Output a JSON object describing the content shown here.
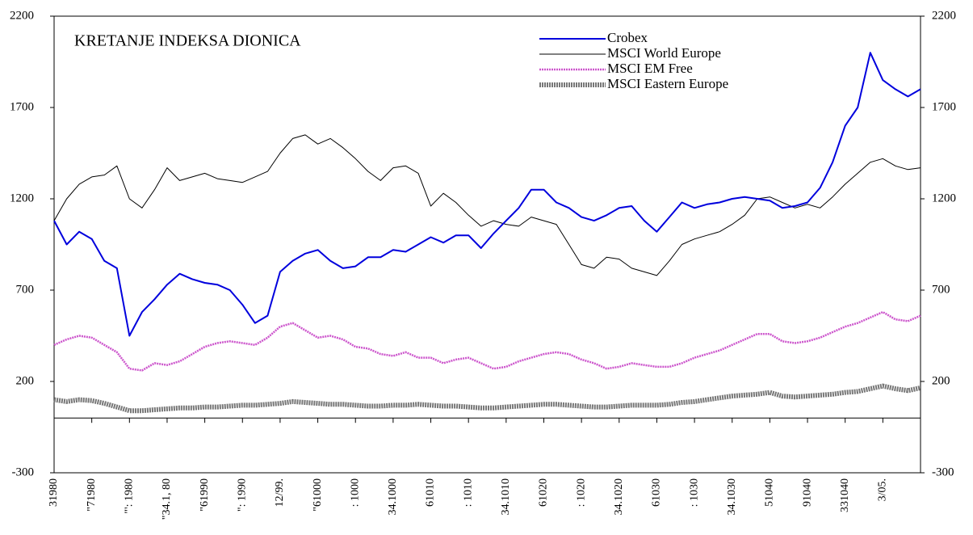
{
  "chart_data": {
    "type": "line",
    "title": "KRETANJE INDEKSA DIONICA",
    "categories": [
      "31980",
      null,
      null,
      "\"71980",
      null,
      null,
      "\"': 1980",
      null,
      null,
      "\"34.1, 80",
      null,
      null,
      "\"61990",
      null,
      null,
      "\": 1990",
      null,
      null,
      "12/99.",
      null,
      null,
      "\"61000",
      null,
      null,
      ": 1000",
      null,
      null,
      "34.1000",
      null,
      null,
      "61010",
      null,
      null,
      ": 1010",
      null,
      null,
      "34.1010",
      null,
      null,
      "61020",
      null,
      null,
      ": 1020",
      null,
      null,
      "34.1020",
      null,
      null,
      "61030",
      null,
      null,
      ": 1030",
      null,
      null,
      "34.1030",
      null,
      null,
      "51040",
      null,
      null,
      "91040",
      null,
      null,
      "331040",
      null,
      null,
      "3/05.",
      null,
      null,
      null
    ],
    "series": [
      {
        "name": "Crobex",
        "color": "#0000dd",
        "values": [
          1080,
          950,
          1020,
          980,
          860,
          820,
          450,
          580,
          650,
          730,
          790,
          760,
          740,
          730,
          700,
          620,
          520,
          560,
          800,
          860,
          900,
          920,
          860,
          820,
          830,
          880,
          880,
          920,
          910,
          950,
          990,
          960,
          1000,
          1000,
          930,
          1010,
          1080,
          1150,
          1250,
          1250,
          1180,
          1150,
          1100,
          1080,
          1110,
          1150,
          1160,
          1080,
          1020,
          1100,
          1180,
          1150,
          1170,
          1180,
          1200,
          1210,
          1200,
          1190,
          1150,
          1160,
          1180,
          1260,
          1400,
          1600,
          1700,
          2000,
          1850,
          1800,
          1760,
          1800
        ]
      },
      {
        "name": "MSCI World Europe",
        "color": "#000000",
        "values": [
          1080,
          1200,
          1280,
          1320,
          1330,
          1380,
          1200,
          1150,
          1250,
          1370,
          1300,
          1320,
          1340,
          1310,
          1300,
          1290,
          1320,
          1350,
          1450,
          1530,
          1550,
          1500,
          1530,
          1480,
          1420,
          1350,
          1300,
          1370,
          1380,
          1340,
          1160,
          1230,
          1180,
          1110,
          1050,
          1080,
          1060,
          1050,
          1100,
          1080,
          1060,
          950,
          840,
          820,
          880,
          870,
          820,
          800,
          780,
          860,
          950,
          980,
          1000,
          1020,
          1060,
          1110,
          1200,
          1210,
          1180,
          1150,
          1170,
          1150,
          1210,
          1280,
          1340,
          1400,
          1420,
          1380,
          1360,
          1370
        ]
      },
      {
        "name": "MSCI EM Free",
        "color": "#cc55cc",
        "values": [
          400,
          430,
          450,
          440,
          400,
          360,
          270,
          260,
          300,
          290,
          310,
          350,
          390,
          410,
          420,
          410,
          400,
          440,
          500,
          520,
          480,
          440,
          450,
          430,
          390,
          380,
          350,
          340,
          360,
          330,
          330,
          300,
          320,
          330,
          300,
          270,
          280,
          310,
          330,
          350,
          360,
          350,
          320,
          300,
          270,
          280,
          300,
          290,
          280,
          280,
          300,
          330,
          350,
          370,
          400,
          430,
          460,
          460,
          420,
          410,
          420,
          440,
          470,
          500,
          520,
          550,
          580,
          540,
          530,
          560
        ]
      },
      {
        "name": "MSCI Eastern Europe",
        "color": "#777777",
        "values": [
          100,
          90,
          100,
          95,
          80,
          60,
          40,
          40,
          45,
          50,
          55,
          55,
          60,
          60,
          65,
          70,
          70,
          75,
          80,
          90,
          85,
          80,
          75,
          75,
          70,
          65,
          65,
          70,
          70,
          75,
          70,
          65,
          65,
          60,
          55,
          55,
          60,
          65,
          70,
          75,
          75,
          70,
          65,
          60,
          60,
          65,
          70,
          70,
          70,
          75,
          85,
          90,
          100,
          110,
          120,
          125,
          130,
          140,
          120,
          115,
          120,
          125,
          130,
          140,
          145,
          160,
          175,
          160,
          150,
          165
        ]
      }
    ],
    "ylim": [
      -300,
      2200
    ],
    "yticks": [
      -300,
      200,
      700,
      1200,
      1700,
      2200
    ],
    "y2lim": [
      -300,
      2200
    ],
    "y2ticks": [
      -300,
      200,
      700,
      1200,
      1700,
      2200
    ],
    "legend": "upper right",
    "grid": false
  }
}
